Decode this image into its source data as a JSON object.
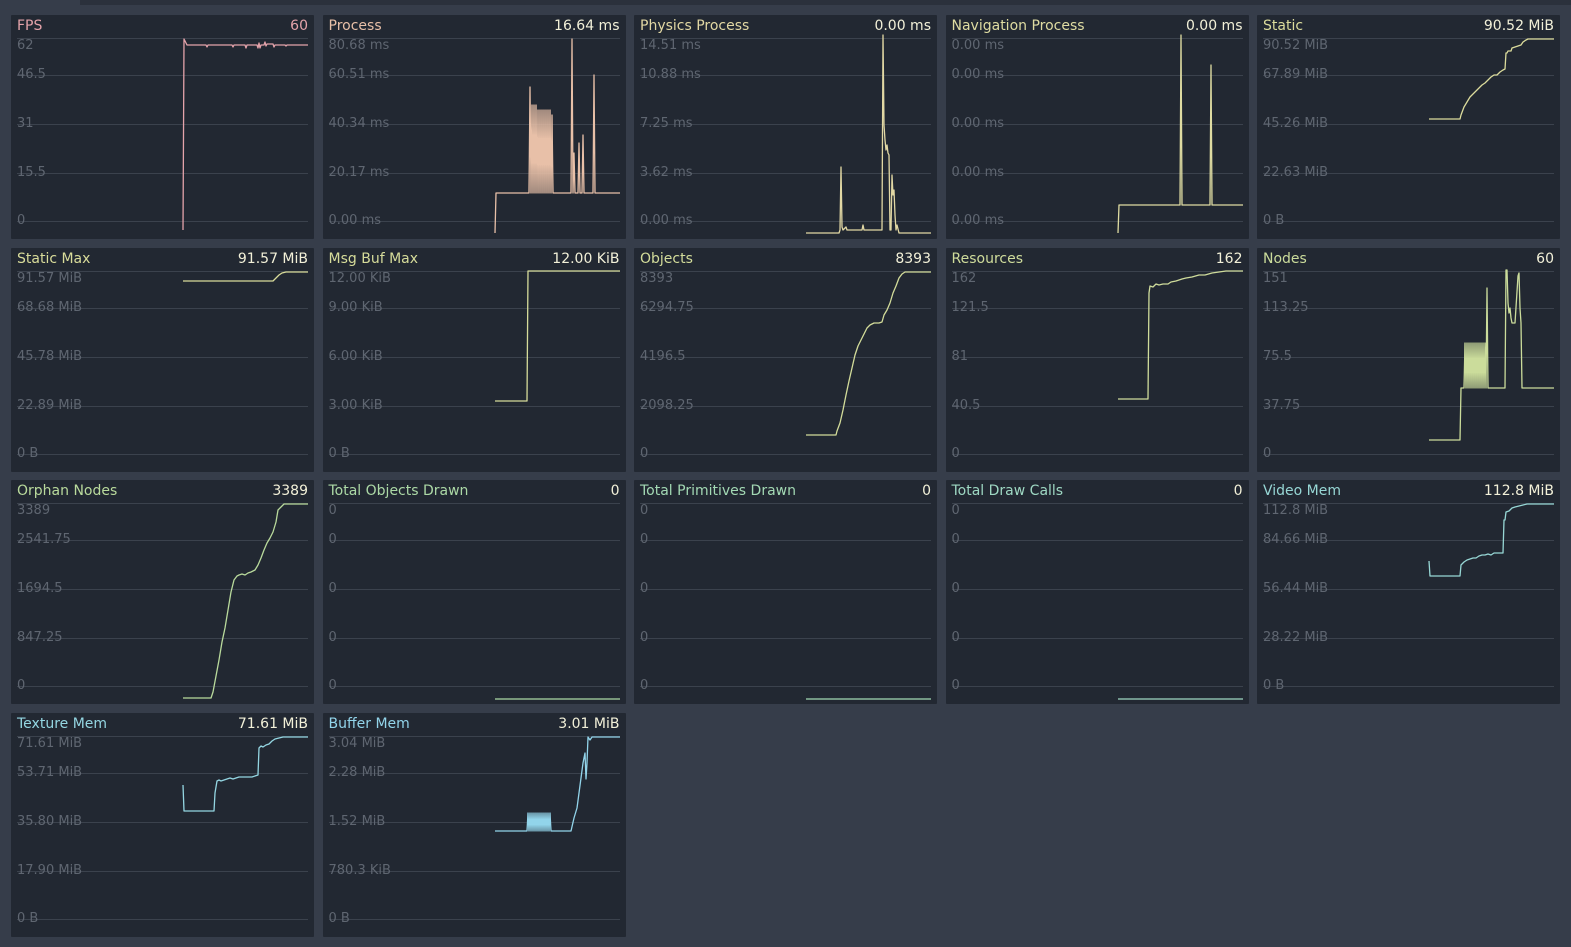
{
  "colors": {
    "background": "#363d4a",
    "panel": "#222832",
    "gridline": "#3b424d",
    "tick_text": "#5f6671",
    "fps": "#e4a3aa",
    "process": "#e8c0a8",
    "yellow": "#d9dc9a",
    "green": "#b6d99c",
    "teal": "#9ed8c3",
    "cyan": "#94d6e6"
  },
  "monitors": [
    {
      "name": "FPS",
      "value": "60",
      "color": "#e4a3aa",
      "ticks": [
        "62",
        "46.5",
        "31",
        "15.5",
        "0"
      ]
    },
    {
      "name": "Process",
      "value": "16.64 ms",
      "color": "#e8c0a8",
      "ticks": [
        "80.68 ms",
        "60.51 ms",
        "40.34 ms",
        "20.17 ms",
        "0.00 ms"
      ]
    },
    {
      "name": "Physics Process",
      "value": "0.00 ms",
      "color": "#e2d8a4",
      "ticks": [
        "14.51 ms",
        "10.88 ms",
        "7.25 ms",
        "3.62 ms",
        "0.00 ms"
      ]
    },
    {
      "name": "Navigation Process",
      "value": "0.00 ms",
      "color": "#dfdca2",
      "ticks": [
        "0.00 ms",
        "0.00 ms",
        "0.00 ms",
        "0.00 ms",
        "0.00 ms"
      ]
    },
    {
      "name": "Static",
      "value": "90.52 MiB",
      "color": "#dcdc9c",
      "ticks": [
        "90.52 MiB",
        "67.89 MiB",
        "45.26 MiB",
        "22.63 MiB",
        "0 B"
      ]
    },
    {
      "name": "Static Max",
      "value": "91.57 MiB",
      "color": "#d9dc9a",
      "ticks": [
        "91.57 MiB",
        "68.68 MiB",
        "45.78 MiB",
        "22.89 MiB",
        "0 B"
      ]
    },
    {
      "name": "Msg Buf Max",
      "value": "12.00 KiB",
      "color": "#d6dc9a",
      "ticks": [
        "12.00 KiB",
        "9.00 KiB",
        "6.00 KiB",
        "3.00 KiB",
        "0 B"
      ]
    },
    {
      "name": "Objects",
      "value": "8393",
      "color": "#d3dc9a",
      "ticks": [
        "8393",
        "6294.75",
        "4196.5",
        "2098.25",
        "0"
      ]
    },
    {
      "name": "Resources",
      "value": "162",
      "color": "#cfdc9b",
      "ticks": [
        "162",
        "121.5",
        "81",
        "40.5",
        "0"
      ]
    },
    {
      "name": "Nodes",
      "value": "60",
      "color": "#cbdc9b",
      "ticks": [
        "151",
        "113.25",
        "75.5",
        "37.75",
        "0"
      ]
    },
    {
      "name": "Orphan Nodes",
      "value": "3389",
      "color": "#b9da9c",
      "ticks": [
        "3389",
        "2541.75",
        "1694.5",
        "847.25",
        "0"
      ]
    },
    {
      "name": "Total Objects Drawn",
      "value": "0",
      "color": "#acd9a6",
      "ticks": [
        "0",
        "0",
        "0",
        "0",
        "0"
      ]
    },
    {
      "name": "Total Primitives Drawn",
      "value": "0",
      "color": "#a3d9b4",
      "ticks": [
        "0",
        "0",
        "0",
        "0",
        "0"
      ]
    },
    {
      "name": "Total Draw Calls",
      "value": "0",
      "color": "#9ed8c3",
      "ticks": [
        "0",
        "0",
        "0",
        "0",
        "0"
      ]
    },
    {
      "name": "Video Mem",
      "value": "112.8 MiB",
      "color": "#97d7d5",
      "ticks": [
        "112.8 MiB",
        "84.66 MiB",
        "56.44 MiB",
        "28.22 MiB",
        "0 B"
      ]
    },
    {
      "name": "Texture Mem",
      "value": "71.61 MiB",
      "color": "#94d6e2",
      "ticks": [
        "71.61 MiB",
        "53.71 MiB",
        "35.80 MiB",
        "17.90 MiB",
        "0 B"
      ]
    },
    {
      "name": "Buffer Mem",
      "value": "3.01 MiB",
      "color": "#92d4ea",
      "ticks": [
        "3.04 MiB",
        "2.28 MiB",
        "1.52 MiB",
        "780.3 KiB",
        "0 B"
      ]
    }
  ]
}
